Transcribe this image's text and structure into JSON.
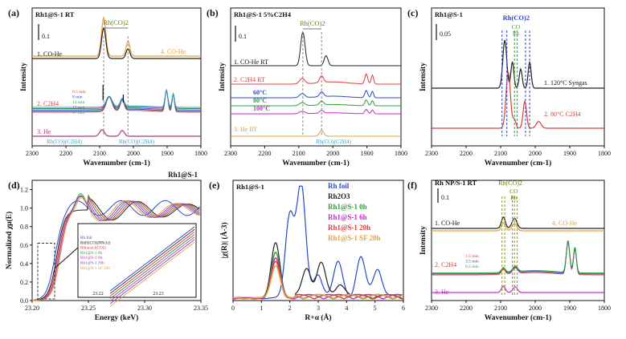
{
  "chart_data": [
    {
      "panel": "(a)",
      "type": "line",
      "title": "Rh1@S-1 RT",
      "xlabel": "Wavenumber (cm-1)",
      "ylabel": "Intensity",
      "xlim": [
        2300,
        1800
      ],
      "xticks": [
        "2300",
        "2200",
        "2100",
        "2000",
        "1900",
        "1800"
      ],
      "scale_bar": "0.1",
      "annotations": {
        "rhco2": "Rh(CO)2",
        "rhco_c2h4_left": "Rh(CO)(C2H4)",
        "rhco_c2h4_right": "Rh(CO)(C2H4)"
      },
      "time_labels": [
        "0.5 min",
        "8 min",
        "13 min",
        "17 min",
        "47 min"
      ],
      "series": [
        {
          "name": "1. CO-He",
          "color": "#222222",
          "peaks_cm": [
            2088,
            2016
          ],
          "label_side": "left"
        },
        {
          "name": "4. CO-He",
          "color": "#e8a03a",
          "peaks_cm": [
            2088,
            2016
          ],
          "label_side": "right"
        },
        {
          "name": "2. C2H4",
          "color": "#e03c3c",
          "peaks_cm": [
            2072,
            2033,
            1902,
            1882
          ],
          "label_side": "left"
        },
        {
          "name": "3. He",
          "color": "#b03a7a",
          "peaks_cm": [
            2093,
            2033
          ],
          "label_side": "left"
        }
      ]
    },
    {
      "panel": "(b)",
      "type": "line",
      "title": "Rh1@S-1 5%C2H4",
      "xlabel": "Wavenumber (cm-1)",
      "ylabel": "Intensity",
      "xlim": [
        2300,
        1800
      ],
      "xticks": [
        "2300",
        "2200",
        "2100",
        "2000",
        "1900",
        "1800"
      ],
      "scale_bar": "0.1",
      "annotations": {
        "rhco2": "Rh(CO)2",
        "rhco_c2h4": "Rh(CO)(C2H4)"
      },
      "series": [
        {
          "name": "1. CO-He RT",
          "color": "#222222"
        },
        {
          "name": "2. C2H4 RT",
          "color": "#e03c3c"
        },
        {
          "name": "60°C",
          "color": "#2a49c9"
        },
        {
          "name": "80°C",
          "color": "#2f9e3a"
        },
        {
          "name": "100°C",
          "color": "#c92ac9"
        },
        {
          "name": "3. He RT",
          "color": "#e8a03a"
        }
      ]
    },
    {
      "panel": "(c)",
      "type": "line",
      "title": "Rh1@S-1",
      "xlabel": "Wavenumber (cm-1)",
      "ylabel": "Intensity",
      "xlim": [
        2300,
        1800
      ],
      "xticks": [
        "2300",
        "2200",
        "2100",
        "2000",
        "1900",
        "1800"
      ],
      "scale_bar": "0.05",
      "annotations": {
        "rhco2": "Rh(CO)2",
        "co": "CO",
        "rh": "Rh"
      },
      "series": [
        {
          "name": "1. 120°C Syngas",
          "color": "#222222"
        },
        {
          "name": "2. 80°C C2H4",
          "color": "#e03c3c"
        }
      ]
    },
    {
      "panel": "(d)",
      "type": "line",
      "title": "Rh1@S-1",
      "xlabel": "Energy (keV)",
      "ylabel": "Normalized χμ(E)",
      "xlim": [
        23.2,
        23.35
      ],
      "ylim": [
        0.0,
        1.3
      ],
      "xticks": [
        "23.20",
        "23.25",
        "23.30",
        "23.35"
      ],
      "yticks": [
        "0.0",
        "0.2",
        "0.4",
        "0.6",
        "0.8",
        "1.0",
        "1.2"
      ],
      "inset_xticks": [
        "23.22",
        "23.23"
      ],
      "legend": [
        "Rh foil",
        "RhH(CO)(PPh3)3",
        "Rh(acac)(CO)2",
        "Rh1@S-1 0h",
        "Rh1@S-1 6h",
        "Rh1@S-1 20h",
        "Rh1@S-1 SF 20h"
      ],
      "colors": [
        "#2a49c9",
        "#222222",
        "#e03c3c",
        "#2f9e3a",
        "#c92ac9",
        "#7a5ab0",
        "#e8a03a"
      ]
    },
    {
      "panel": "(e)",
      "type": "line",
      "title": "Rh1@S-1",
      "xlabel": "R+α (Å)",
      "ylabel": "|χ(R)| (Å-3)",
      "xlim": [
        0,
        6
      ],
      "xticks": [
        "0",
        "1",
        "2",
        "3",
        "4",
        "5",
        "6"
      ],
      "legend_position": "top-right",
      "series": [
        {
          "name": "Rh foil",
          "color": "#2a49c9",
          "peaks": [
            [
              2.0,
              0.75
            ],
            [
              2.4,
              1.0
            ],
            [
              3.0,
              0.2
            ],
            [
              3.7,
              0.3
            ],
            [
              4.5,
              0.35
            ],
            [
              5.1,
              0.25
            ]
          ]
        },
        {
          "name": "Rh2O3",
          "color": "#222222",
          "peaks": [
            [
              1.5,
              0.5
            ],
            [
              2.6,
              0.25
            ],
            [
              3.1,
              0.3
            ],
            [
              3.8,
              0.12
            ]
          ]
        },
        {
          "name": "Rh1@S-1 0h",
          "color": "#2f9e3a",
          "peaks": [
            [
              1.5,
              0.42
            ]
          ]
        },
        {
          "name": "Rh1@S-1 6h",
          "color": "#c92ac9",
          "peaks": [
            [
              1.5,
              0.36
            ]
          ]
        },
        {
          "name": "Rh1@S-1 20h",
          "color": "#e03c3c",
          "peaks": [
            [
              1.5,
              0.33
            ]
          ]
        },
        {
          "name": "Rh1@S-1 SF 20h",
          "color": "#e8a03a",
          "peaks": [
            [
              1.5,
              0.3
            ]
          ]
        }
      ]
    },
    {
      "panel": "(f)",
      "type": "line",
      "title": "Rh NP/S-1 RT",
      "xlabel": "Wavenumber (cm-1)",
      "ylabel": "Intensity",
      "xlim": [
        2300,
        1800
      ],
      "xticks": [
        "2300",
        "2200",
        "2100",
        "2000",
        "1900",
        "1800"
      ],
      "scale_bar": "0.1",
      "annotations": {
        "rhco2": "Rh(CO)2",
        "co": "CO",
        "rh": "Rh"
      },
      "time_labels": [
        "1.5 min",
        "3.5 min",
        "6.5 min"
      ],
      "series": [
        {
          "name": "1. CO-He",
          "color": "#222222"
        },
        {
          "name": "4. CO-He",
          "color": "#e8a03a"
        },
        {
          "name": "2. C2H4",
          "color": "#e03c3c"
        },
        {
          "name": "3. He",
          "color": "#c92ac9"
        }
      ]
    }
  ]
}
